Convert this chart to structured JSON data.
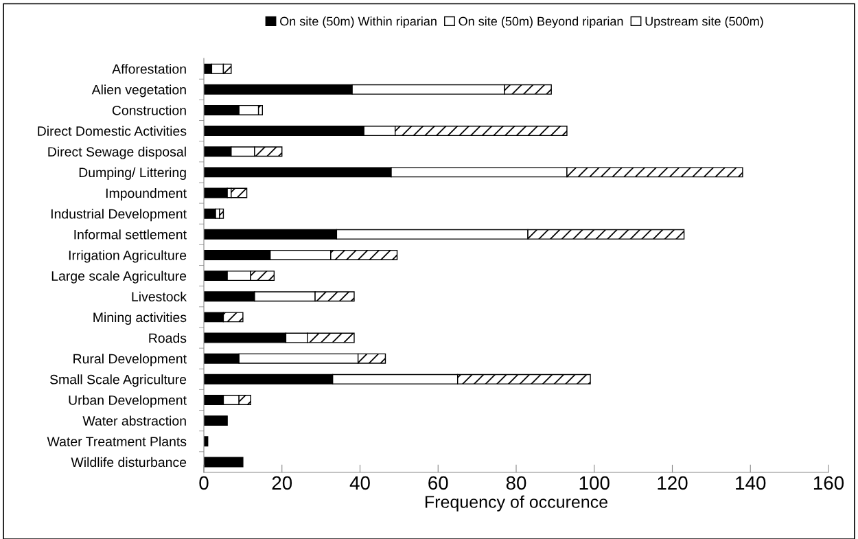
{
  "chart_data": {
    "type": "bar",
    "orientation": "horizontal",
    "stacked": true,
    "categories": [
      "Afforestation",
      "Alien vegetation",
      "Construction",
      "Direct Domestic Activities",
      "Direct Sewage disposal",
      "Dumping/ Littering",
      "Impoundment",
      "Industrial Development",
      "Informal settlement",
      "Irrigation Agriculture",
      "Large scale Agriculture",
      "Livestock",
      "Mining activities",
      "Roads",
      "Rural Development",
      "Small Scale Agriculture",
      "Urban Development",
      "Water abstraction",
      "Water Treatment Plants",
      "Wildlife disturbance"
    ],
    "series": [
      {
        "name": "On site (50m) Within riparian",
        "color": "#000000",
        "values": [
          2,
          38,
          9,
          41,
          7,
          48,
          6,
          3,
          34,
          17,
          6,
          13,
          5,
          21,
          9,
          33,
          5,
          6,
          1,
          10
        ]
      },
      {
        "name": "On site (50m) Beyond riparian",
        "color": "#ffffff",
        "values": [
          3,
          39,
          5,
          8,
          6,
          45,
          1,
          1,
          49,
          15.5,
          6,
          15.5,
          0,
          5.5,
          30.5,
          32,
          4,
          0,
          0,
          0
        ]
      },
      {
        "name": "Upstream site (500m)",
        "color": "#ffffff",
        "values": [
          2,
          12,
          1,
          44,
          7,
          45,
          4,
          1,
          40,
          17,
          6,
          10,
          5,
          12,
          7,
          34,
          3,
          0,
          0,
          0
        ]
      }
    ],
    "xlabel": "Frequency of occurence",
    "xlim": [
      0,
      160
    ],
    "xticks": [
      0,
      20,
      40,
      60,
      80,
      100,
      120,
      140,
      160
    ],
    "grid": false,
    "legend": "top"
  }
}
